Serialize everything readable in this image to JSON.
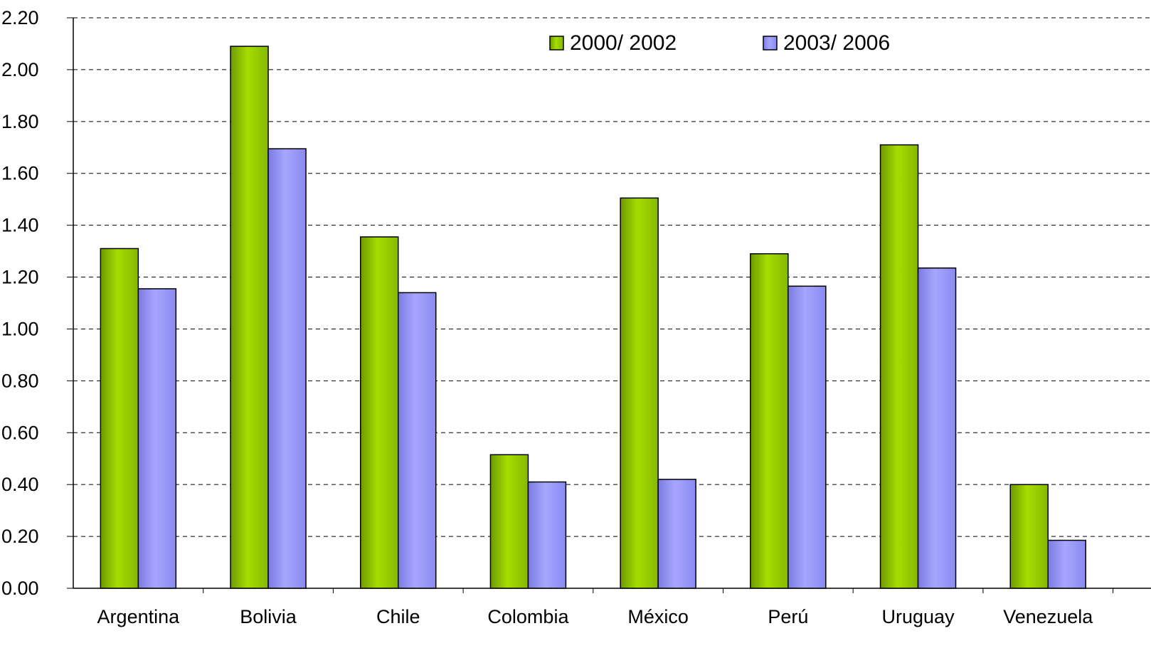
{
  "chart_data": {
    "type": "bar",
    "title": "",
    "xlabel": "",
    "ylabel": "",
    "categories": [
      "Argentina",
      "Bolivia",
      "Chile",
      "Colombia",
      "México",
      "Perú",
      "Uruguay",
      "Venezuela"
    ],
    "series": [
      {
        "name": "2000/ 2002",
        "color": "#99cc00",
        "values": [
          1.31,
          2.09,
          1.355,
          0.515,
          1.505,
          1.29,
          1.71,
          0.4
        ]
      },
      {
        "name": "2003/ 2006",
        "color": "#9999ff",
        "values": [
          1.155,
          1.695,
          1.14,
          0.41,
          0.42,
          1.165,
          1.235,
          0.185
        ]
      }
    ],
    "ylim": [
      0,
      2.2
    ],
    "yticks": [
      "0.00",
      "0.20",
      "0.40",
      "0.60",
      "0.80",
      "1.00",
      "1.20",
      "1.40",
      "1.60",
      "1.80",
      "2.00",
      "2.20"
    ],
    "grid": true,
    "legend_position": "top-right"
  }
}
